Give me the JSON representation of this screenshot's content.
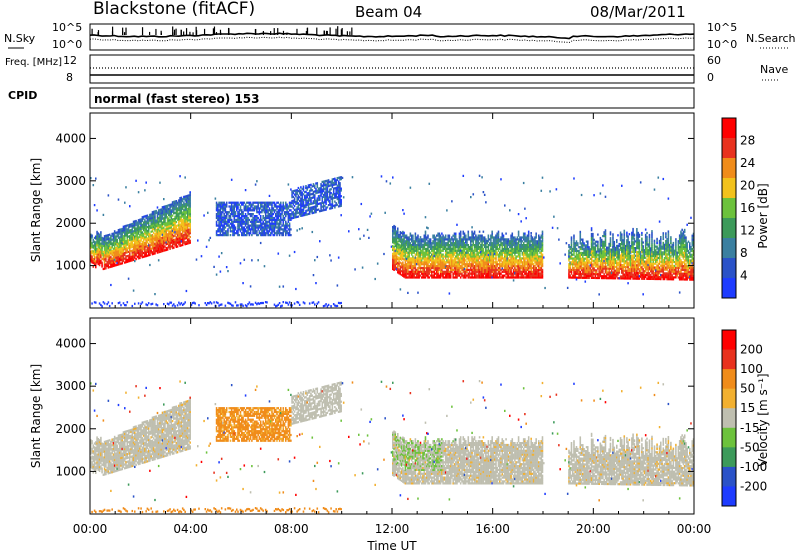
{
  "header": {
    "station": "Blackstone (fitACF)",
    "beam": "Beam 04",
    "date": "08/Mar/2011"
  },
  "cpid_label": "CPID",
  "cpid_text": "normal (fast stereo) 153",
  "colors": {
    "power_scale": [
      "#1e3cff",
      "#2a52c8",
      "#3a7fa0",
      "#3c9a5a",
      "#6cc23c",
      "#f2c21c",
      "#f08c1a",
      "#e8321e",
      "#ff0000"
    ],
    "velocity_scale": [
      "#ff0000",
      "#e8321e",
      "#f08c1a",
      "#f2b030",
      "#bfbfb0",
      "#6cc23c",
      "#3c9a5a",
      "#2a52c8",
      "#1e3cff"
    ],
    "white": "#ffffff"
  },
  "chart_data": [
    {
      "type": "line",
      "panel": "noise",
      "ylabel_left": "N.Sky",
      "ylabel_right": "N.Search",
      "ylim": [
        "10^0",
        "10^5"
      ],
      "left_ticks": [
        "10^5",
        "10^0"
      ],
      "right_ticks": [
        "10^5",
        "10^0"
      ],
      "series": [
        {
          "name": "N.Sky",
          "style": "solid"
        },
        {
          "name": "N.Search",
          "style": "dotted"
        }
      ]
    },
    {
      "type": "line",
      "panel": "frequency",
      "ylabel_left": "Freq. [MHz]",
      "ylabel_right": "Nave",
      "left_ticks": [
        "12",
        "8"
      ],
      "right_ticks": [
        "60",
        "0"
      ],
      "series": [
        {
          "name": "Freq.",
          "style": "solid"
        },
        {
          "name": "Nave",
          "style": "dotted"
        }
      ]
    },
    {
      "type": "heatmap",
      "panel": "power",
      "xlabel": "",
      "ylabel": "Slant Range [km]",
      "xlim": [
        "00:00",
        "24:00"
      ],
      "ylim": [
        0,
        4600
      ],
      "y_ticks": [
        1000,
        2000,
        3000,
        4000
      ],
      "colorbar_label": "Power [dB]",
      "colorbar_ticks": [
        "4",
        "8",
        "12",
        "16",
        "20",
        "24",
        "28"
      ]
    },
    {
      "type": "heatmap",
      "panel": "velocity",
      "xlabel": "Time UT",
      "ylabel": "Slant Range [km]",
      "xlim": [
        "00:00",
        "24:00"
      ],
      "ylim": [
        0,
        4600
      ],
      "x_ticks": [
        "00:00",
        "04:00",
        "08:00",
        "12:00",
        "16:00",
        "20:00",
        "00:00"
      ],
      "y_ticks": [
        1000,
        2000,
        3000,
        4000
      ],
      "colorbar_label": "Velocity [m s⁻¹]",
      "colorbar_ticks": [
        "200",
        "100",
        "50",
        "15",
        "-15",
        "-50",
        "-100",
        "-200"
      ]
    }
  ]
}
